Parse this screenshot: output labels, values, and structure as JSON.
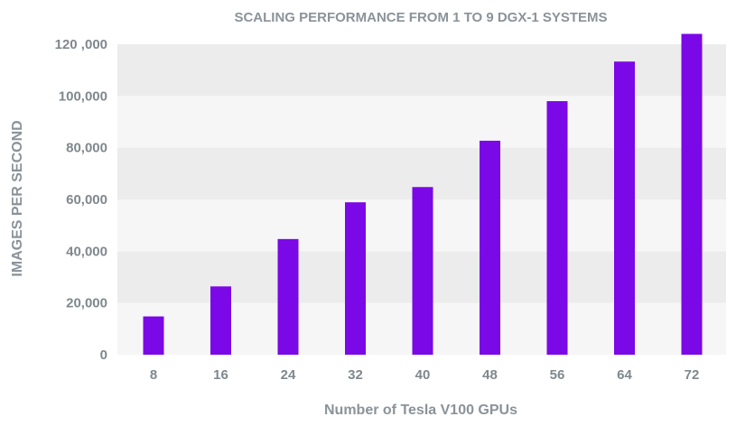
{
  "chart_data": {
    "type": "bar",
    "title": "SCALING PERFORMANCE FROM 1 TO 9 DGX-1 SYSTEMS",
    "xlabel": "Number of Tesla V100 GPUs",
    "ylabel": "IMAGES PER SECOND",
    "categories": [
      "8",
      "16",
      "24",
      "32",
      "40",
      "48",
      "56",
      "64",
      "72"
    ],
    "values": [
      14800,
      26400,
      44700,
      58900,
      64800,
      82700,
      98000,
      113300,
      124000
    ],
    "ylim": [
      0,
      120000
    ],
    "yticks": [
      0,
      20000,
      40000,
      60000,
      80000,
      100000,
      120000
    ],
    "ytick_labels": [
      "0",
      "20,000",
      "40,000",
      "60,000",
      "80,000",
      "100,000",
      "120 ,000"
    ],
    "grid": "alternating horizontal bands",
    "legend": "none",
    "colors": {
      "bar": "#7b08e6",
      "band_dark": "#ececec",
      "band_light": "#f6f6f6",
      "text": "#8a9399"
    }
  }
}
